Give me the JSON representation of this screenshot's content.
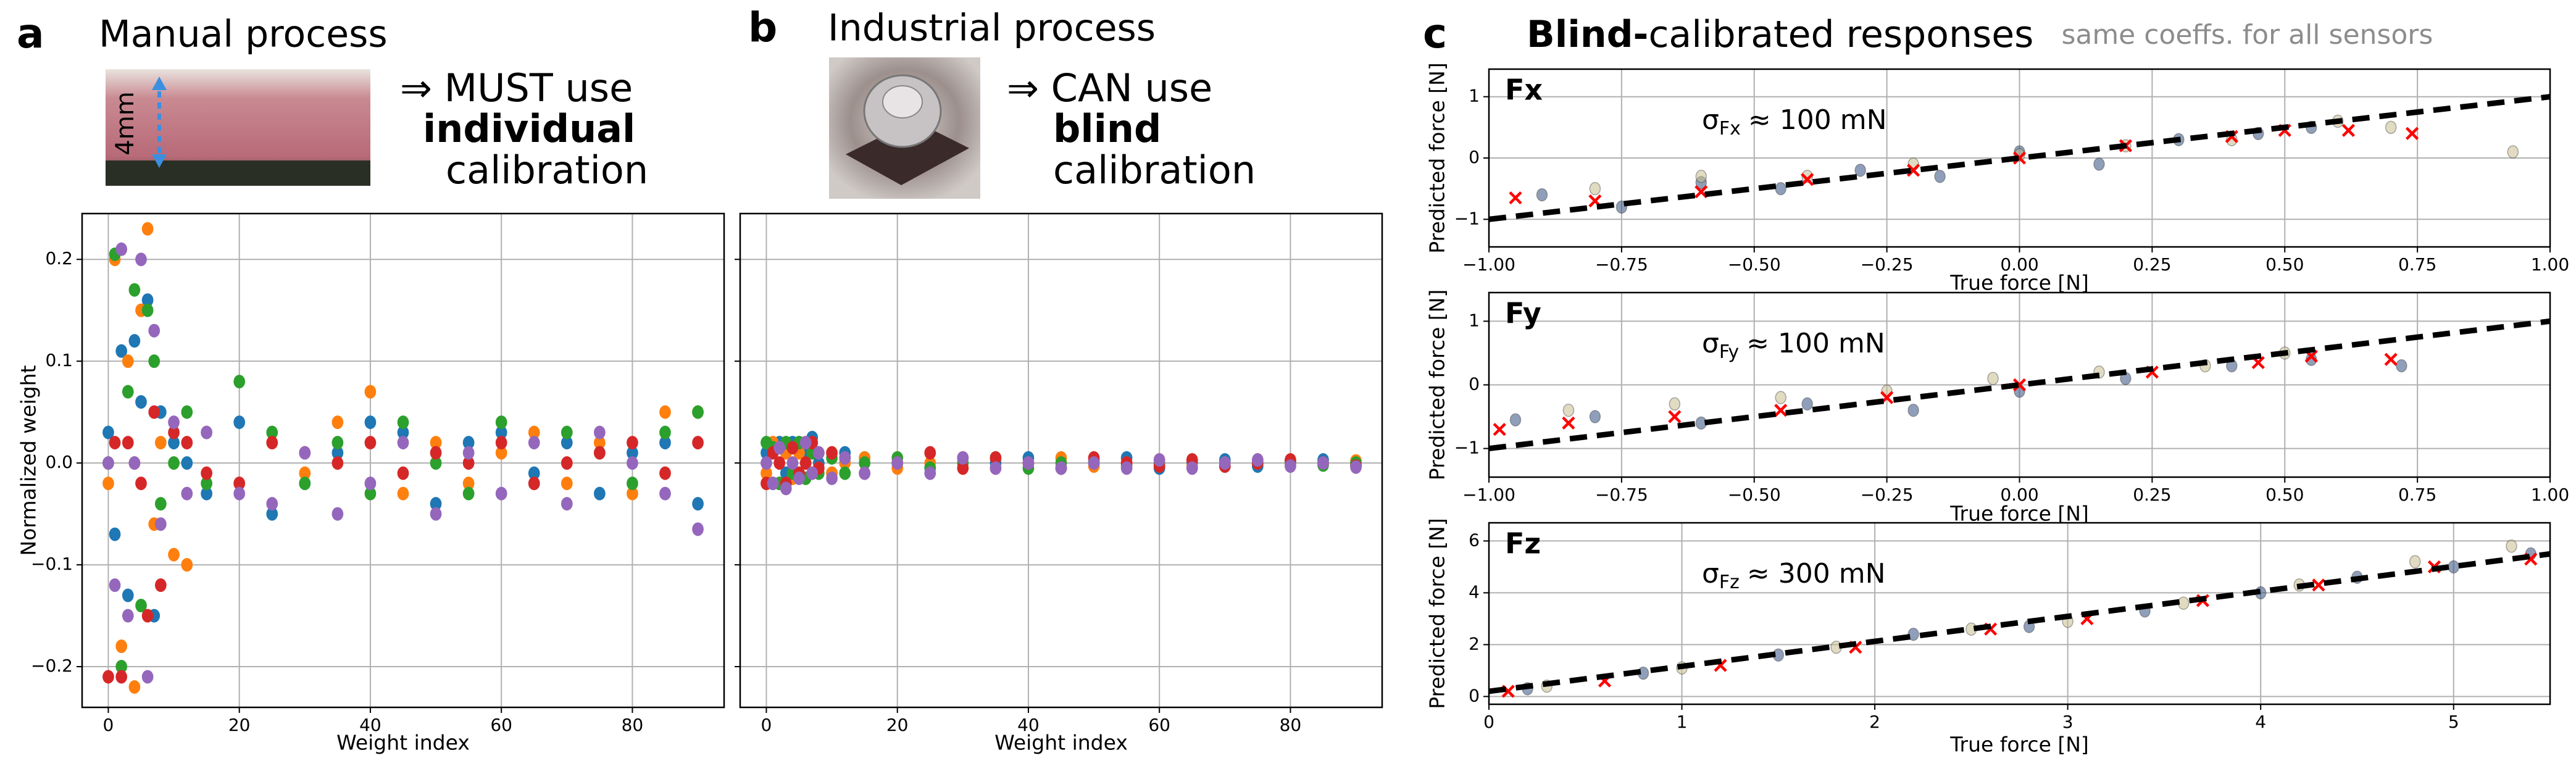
{
  "panels": [
    {
      "label": "a",
      "title": "Manual process",
      "photo_label": "4mm",
      "note": [
        {
          "text": "⇒ MUST use",
          "bold": false
        },
        {
          "text": "individual",
          "bold": true
        },
        {
          "text": "calibration",
          "bold": false
        }
      ]
    },
    {
      "label": "b",
      "title": "Industrial process",
      "note": [
        {
          "text": "⇒ CAN use",
          "bold": false
        },
        {
          "text": "blind",
          "bold": true
        },
        {
          "text": "calibration",
          "bold": false
        }
      ]
    },
    {
      "label": "c",
      "title_bold": "Blind-",
      "title": "calibrated responses",
      "subtitle": "same coeffs. for all sensors"
    }
  ],
  "chart_data": [
    {
      "type": "scatter",
      "xlabel": "Weight index",
      "ylabel": "Normalized weight",
      "grid": true,
      "show_ytick_labels": true,
      "xlim": [
        -4,
        94
      ],
      "xticks": [
        0,
        20,
        40,
        60,
        80
      ],
      "ylim": [
        -0.24,
        0.245
      ],
      "yticks": [
        {
          "value": -0.2,
          "label": "−0.2"
        },
        {
          "value": -0.1,
          "label": "−0.1"
        },
        {
          "value": 0,
          "label": "0.0"
        },
        0.1,
        0.2
      ],
      "x": [
        0,
        1,
        2,
        3,
        4,
        5,
        6,
        7,
        8,
        10,
        12,
        15,
        20,
        25,
        30,
        35,
        40,
        45,
        50,
        55,
        60,
        65,
        70,
        75,
        80,
        85,
        90
      ],
      "series": [
        {
          "color": "#1f77b4",
          "values": [
            0.03,
            -0.07,
            0.11,
            -0.13,
            0.12,
            0.06,
            0.16,
            -0.15,
            0.05,
            0.02,
            0.0,
            -0.03,
            0.04,
            -0.05,
            -0.02,
            0.01,
            0.04,
            0.03,
            -0.04,
            0.02,
            0.03,
            -0.01,
            0.02,
            -0.03,
            0.01,
            0.02,
            -0.04
          ]
        },
        {
          "color": "#ff7f0e",
          "values": [
            -0.02,
            0.2,
            -0.18,
            0.1,
            -0.22,
            0.15,
            0.23,
            -0.06,
            0.02,
            -0.09,
            -0.1,
            0.03,
            -0.02,
            0.02,
            -0.01,
            0.04,
            0.07,
            -0.03,
            0.02,
            -0.02,
            0.01,
            0.03,
            -0.02,
            0.02,
            -0.03,
            0.05,
            0.05
          ]
        },
        {
          "color": "#2ca02c",
          "values": [
            0.0,
            0.205,
            -0.2,
            0.07,
            0.17,
            -0.14,
            0.15,
            0.1,
            -0.04,
            0.0,
            0.05,
            -0.02,
            0.08,
            0.03,
            -0.02,
            0.02,
            -0.03,
            0.04,
            0.0,
            -0.03,
            0.04,
            -0.02,
            0.03,
            0.01,
            -0.02,
            0.03,
            0.05
          ]
        },
        {
          "color": "#d62728",
          "values": [
            -0.21,
            0.02,
            -0.21,
            0.02,
            0.0,
            -0.02,
            -0.15,
            0.05,
            -0.12,
            0.03,
            0.02,
            -0.01,
            -0.02,
            0.02,
            0.01,
            0.0,
            0.02,
            -0.01,
            0.01,
            0.0,
            0.02,
            -0.02,
            0.0,
            0.01,
            0.02,
            -0.01,
            0.02
          ]
        },
        {
          "color": "#9467bd",
          "values": [
            0.0,
            -0.12,
            0.21,
            -0.15,
            0.0,
            0.2,
            -0.21,
            0.13,
            -0.06,
            0.04,
            -0.03,
            0.03,
            -0.03,
            -0.04,
            0.01,
            -0.05,
            -0.02,
            0.02,
            -0.05,
            0.01,
            -0.03,
            0.02,
            -0.04,
            0.03,
            0.0,
            -0.03,
            -0.065
          ]
        }
      ]
    },
    {
      "type": "scatter",
      "xlabel": "Weight index",
      "grid": true,
      "show_ytick_labels": false,
      "xlim": [
        -4,
        94
      ],
      "xticks": [
        0,
        20,
        40,
        60,
        80
      ],
      "ylim": [
        -0.24,
        0.245
      ],
      "yticks": [
        -0.2,
        -0.1,
        0,
        0.1,
        0.2
      ],
      "x": [
        0,
        1,
        2,
        3,
        4,
        5,
        6,
        7,
        8,
        10,
        12,
        15,
        20,
        25,
        30,
        35,
        40,
        45,
        50,
        55,
        60,
        65,
        70,
        75,
        80,
        85,
        90
      ],
      "series": [
        {
          "color": "#1f77b4",
          "values": [
            0.01,
            -0.02,
            0.02,
            -0.01,
            0.02,
            0.02,
            0.01,
            0.025,
            0.0,
            -0.01,
            0.01,
            0.005,
            0.0,
            -0.005,
            0.005,
            0.0,
            0.005,
            -0.005,
            0.0,
            0.005,
            -0.005,
            0.0,
            0.003,
            -0.003,
            0.0,
            0.003,
            -0.002
          ]
        },
        {
          "color": "#ff7f0e",
          "values": [
            -0.01,
            0.02,
            -0.02,
            0.01,
            -0.015,
            0.01,
            0.02,
            -0.01,
            0.01,
            -0.01,
            0.0,
            0.005,
            -0.005,
            0.0,
            0.005,
            -0.005,
            0.0,
            0.005,
            -0.003,
            0.0,
            0.003,
            -0.003,
            0.0,
            0.003,
            -0.002,
            0.0,
            0.002
          ]
        },
        {
          "color": "#2ca02c",
          "values": [
            0.02,
            0.015,
            -0.02,
            0.02,
            -0.01,
            0.02,
            -0.015,
            0.01,
            -0.01,
            0.005,
            -0.01,
            0.0,
            0.005,
            -0.005,
            0.0,
            0.005,
            -0.005,
            0.0,
            0.003,
            -0.003,
            0.0,
            0.003,
            -0.003,
            0.0,
            0.002,
            -0.002,
            0.0
          ]
        },
        {
          "color": "#d62728",
          "values": [
            -0.02,
            0.01,
            0.0,
            -0.02,
            0.015,
            -0.01,
            0.0,
            0.02,
            -0.005,
            0.01,
            0.005,
            -0.01,
            0.0,
            0.01,
            -0.005,
            0.005,
            0.0,
            -0.005,
            0.005,
            0.0,
            -0.003,
            0.003,
            -0.003,
            0.0,
            0.003,
            0.0,
            -0.003
          ]
        },
        {
          "color": "#9467bd",
          "values": [
            0.0,
            -0.02,
            0.015,
            -0.025,
            0.0,
            -0.015,
            0.02,
            -0.01,
            0.01,
            -0.015,
            0.005,
            -0.01,
            0.0,
            -0.01,
            0.005,
            -0.005,
            0.0,
            -0.005,
            0.0,
            -0.005,
            0.003,
            -0.005,
            0.0,
            0.003,
            -0.003,
            0.0,
            -0.004
          ]
        }
      ]
    },
    {
      "type": "scatter",
      "name": "Fx",
      "annotation": {
        "symbol": "σ",
        "sub": "Fx",
        "text": "≈ 100 mN"
      },
      "xlabel": "True force [N]",
      "ylabel": "Predicted force [N]",
      "grid": true,
      "show_ytick_labels": true,
      "xlim": [
        -1,
        1
      ],
      "xticks": [
        {
          "value": -1,
          "label": "−1.00"
        },
        {
          "value": -0.75,
          "label": "−0.75"
        },
        {
          "value": -0.5,
          "label": "−0.50"
        },
        {
          "value": -0.25,
          "label": "−0.25"
        },
        {
          "value": 0,
          "label": "0.00"
        },
        {
          "value": 0.25,
          "label": "0.25"
        },
        {
          "value": 0.5,
          "label": "0.50"
        },
        {
          "value": 0.75,
          "label": "0.75"
        },
        {
          "value": 1,
          "label": "1.00"
        }
      ],
      "ylim": [
        -1.45,
        1.45
      ],
      "yticks": [
        {
          "value": -1,
          "label": "−1"
        },
        0,
        1
      ],
      "fit_line": {
        "x": [
          -1,
          1
        ],
        "y": [
          -1,
          1
        ]
      },
      "series": [
        {
          "color": "#34507f",
          "marker": "o",
          "x": [
            -0.9,
            -0.75,
            -0.6,
            -0.45,
            -0.3,
            -0.15,
            0,
            0.15,
            0.3,
            0.45,
            0.55
          ],
          "values": [
            -0.6,
            -0.8,
            -0.4,
            -0.5,
            -0.2,
            -0.3,
            0.1,
            -0.1,
            0.3,
            0.4,
            0.5
          ]
        },
        {
          "color": "#c9be8f",
          "marker": "o",
          "x": [
            -0.8,
            -0.6,
            -0.4,
            -0.2,
            0,
            0.2,
            0.4,
            0.6,
            0.7,
            0.93
          ],
          "values": [
            -0.5,
            -0.3,
            -0.3,
            -0.1,
            0.05,
            0.2,
            0.3,
            0.6,
            0.5,
            0.1
          ]
        },
        {
          "color": "#ff0000",
          "marker": "x",
          "x": [
            -0.95,
            -0.8,
            -0.6,
            -0.4,
            -0.2,
            0,
            0.2,
            0.4,
            0.5,
            0.62,
            0.74
          ],
          "values": [
            -0.65,
            -0.7,
            -0.55,
            -0.35,
            -0.2,
            0,
            0.2,
            0.35,
            0.45,
            0.45,
            0.4
          ]
        }
      ]
    },
    {
      "type": "scatter",
      "name": "Fy",
      "annotation": {
        "symbol": "σ",
        "sub": "Fy",
        "text": "≈ 100 mN"
      },
      "xlabel": "True force [N]",
      "ylabel": "Predicted force [N]",
      "grid": true,
      "show_ytick_labels": true,
      "xlim": [
        -1,
        1
      ],
      "xticks": [
        {
          "value": -1,
          "label": "−1.00"
        },
        {
          "value": -0.75,
          "label": "−0.75"
        },
        {
          "value": -0.5,
          "label": "−0.50"
        },
        {
          "value": -0.25,
          "label": "−0.25"
        },
        {
          "value": 0,
          "label": "0.00"
        },
        {
          "value": 0.25,
          "label": "0.25"
        },
        {
          "value": 0.5,
          "label": "0.50"
        },
        {
          "value": 0.75,
          "label": "0.75"
        },
        {
          "value": 1,
          "label": "1.00"
        }
      ],
      "ylim": [
        -1.45,
        1.45
      ],
      "yticks": [
        {
          "value": -1,
          "label": "−1"
        },
        0,
        1
      ],
      "fit_line": {
        "x": [
          -1,
          1
        ],
        "y": [
          -1,
          1
        ]
      },
      "series": [
        {
          "color": "#34507f",
          "marker": "o",
          "x": [
            -0.95,
            -0.8,
            -0.6,
            -0.4,
            -0.2,
            0,
            0.2,
            0.4,
            0.55,
            0.72
          ],
          "values": [
            -0.55,
            -0.5,
            -0.6,
            -0.3,
            -0.4,
            -0.1,
            0.1,
            0.3,
            0.4,
            0.3
          ]
        },
        {
          "color": "#c9be8f",
          "marker": "o",
          "x": [
            -0.85,
            -0.65,
            -0.45,
            -0.25,
            -0.05,
            0.15,
            0.35,
            0.5
          ],
          "values": [
            -0.4,
            -0.3,
            -0.2,
            -0.1,
            0.1,
            0.2,
            0.3,
            0.5
          ]
        },
        {
          "color": "#ff0000",
          "marker": "x",
          "x": [
            -0.98,
            -0.85,
            -0.65,
            -0.45,
            -0.25,
            0,
            0.25,
            0.45,
            0.55,
            0.7
          ],
          "values": [
            -0.7,
            -0.6,
            -0.5,
            -0.4,
            -0.2,
            0,
            0.2,
            0.35,
            0.45,
            0.4
          ]
        }
      ]
    },
    {
      "type": "scatter",
      "name": "Fz",
      "annotation": {
        "symbol": "σ",
        "sub": "Fz",
        "text": "≈ 300 mN"
      },
      "xlabel": "True force [N]",
      "ylabel": "Predicted force [N]",
      "grid": true,
      "show_ytick_labels": true,
      "xlim": [
        0,
        5.5
      ],
      "xticks": [
        0,
        1,
        2,
        3,
        4,
        5
      ],
      "ylim": [
        -0.3,
        6.7
      ],
      "yticks": [
        0,
        2,
        4,
        6
      ],
      "fit_line": {
        "x": [
          0,
          5.5
        ],
        "y": [
          0.2,
          5.5
        ]
      },
      "series": [
        {
          "color": "#34507f",
          "marker": "o",
          "x": [
            0.2,
            0.8,
            1.5,
            2.2,
            2.8,
            3.4,
            4,
            4.5,
            5,
            5.4
          ],
          "values": [
            0.3,
            0.9,
            1.6,
            2.4,
            2.7,
            3.3,
            4.0,
            4.6,
            5.0,
            5.5
          ]
        },
        {
          "color": "#c9be8f",
          "marker": "o",
          "x": [
            0.3,
            1.0,
            1.8,
            2.5,
            3.0,
            3.6,
            4.2,
            4.8,
            5.3
          ],
          "values": [
            0.4,
            1.1,
            1.9,
            2.6,
            2.9,
            3.6,
            4.3,
            5.2,
            5.8
          ]
        },
        {
          "color": "#ff0000",
          "marker": "x",
          "x": [
            0.1,
            0.6,
            1.2,
            1.9,
            2.6,
            3.1,
            3.7,
            4.3,
            4.9,
            5.4
          ],
          "values": [
            0.2,
            0.6,
            1.2,
            1.9,
            2.6,
            3.0,
            3.7,
            4.3,
            5.0,
            5.3
          ]
        }
      ]
    }
  ]
}
